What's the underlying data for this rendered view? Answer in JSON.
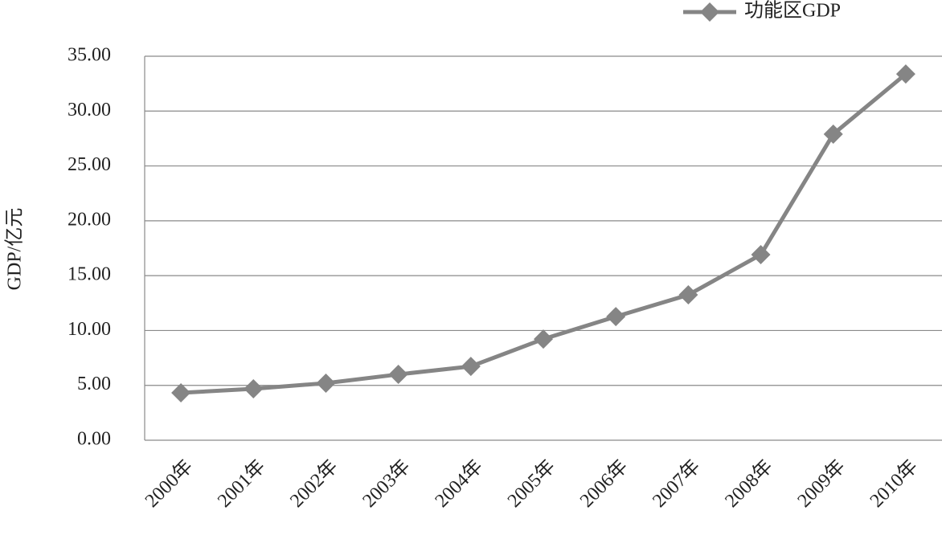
{
  "chart_data": {
    "type": "line",
    "y_label": "GDP/亿元",
    "categories": [
      "2000年",
      "2001年",
      "2002年",
      "2003年",
      "2004年",
      "2005年",
      "2006年",
      "2007年",
      "2008年",
      "2009年",
      "2010年"
    ],
    "series": [
      {
        "name": "功能区GDP",
        "color": "#858585",
        "values": [
          4.32,
          4.69,
          5.2,
          6.0,
          6.73,
          9.22,
          11.27,
          13.25,
          16.91,
          27.9,
          33.38
        ]
      }
    ],
    "ylim": [
      0,
      35
    ],
    "yticks": [
      {
        "value": 0,
        "label": "0.00"
      },
      {
        "value": 5,
        "label": "5.00"
      },
      {
        "value": 10,
        "label": "10.00"
      },
      {
        "value": 15,
        "label": "15.00"
      },
      {
        "value": 20,
        "label": "20.00"
      },
      {
        "value": 25,
        "label": "25.00"
      },
      {
        "value": 30,
        "label": "30.00"
      },
      {
        "value": 35,
        "label": "35.00"
      }
    ],
    "grid": true,
    "legend": "top-right"
  }
}
